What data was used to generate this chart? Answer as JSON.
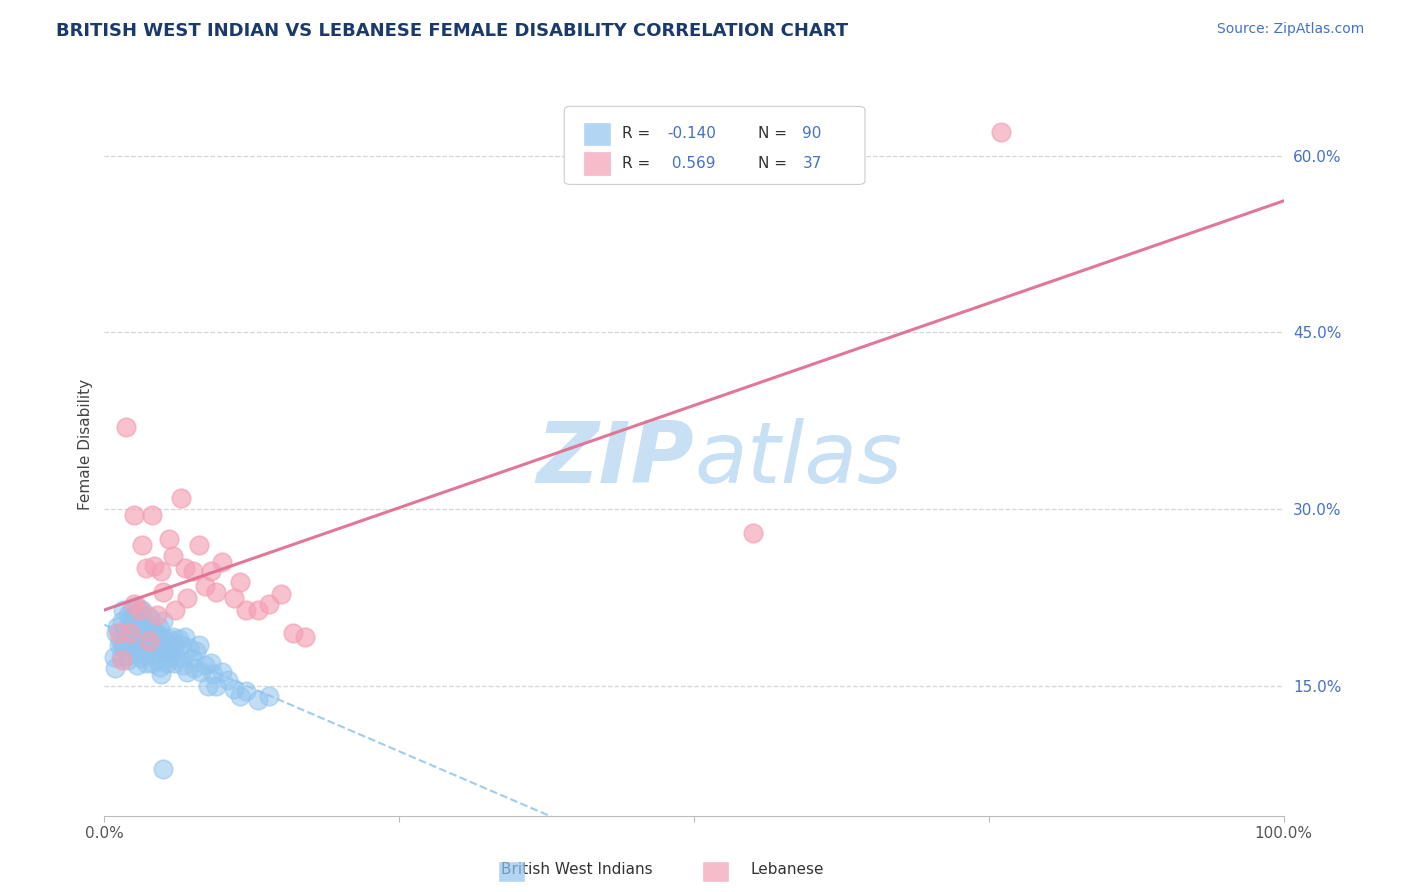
{
  "title": "BRITISH WEST INDIAN VS LEBANESE FEMALE DISABILITY CORRELATION CHART",
  "source": "Source: ZipAtlas.com",
  "ylabel": "Female Disability",
  "xlim": [
    0.0,
    1.0
  ],
  "ylim": [
    0.04,
    0.67
  ],
  "ytick_labels_right": [
    "15.0%",
    "30.0%",
    "45.0%",
    "60.0%"
  ],
  "ytick_positions_right": [
    0.15,
    0.3,
    0.45,
    0.6
  ],
  "r_bwi": -0.14,
  "n_bwi": 90,
  "r_leb": 0.569,
  "n_leb": 37,
  "color_bwi": "#90C4EE",
  "color_leb": "#F4A0B4",
  "color_bwi_line": "#90C4EE",
  "color_leb_line": "#E07090",
  "background_color": "#ffffff",
  "grid_color": "#CCCCCC",
  "watermark_color": "#C8E0F4",
  "title_color": "#1a3a6b",
  "source_color": "#4472C4",
  "legend_color": "#4472C4",
  "bwi_x": [
    0.008,
    0.009,
    0.01,
    0.011,
    0.012,
    0.013,
    0.014,
    0.015,
    0.015,
    0.016,
    0.017,
    0.018,
    0.019,
    0.02,
    0.02,
    0.021,
    0.022,
    0.022,
    0.023,
    0.024,
    0.025,
    0.025,
    0.026,
    0.027,
    0.028,
    0.028,
    0.029,
    0.03,
    0.03,
    0.031,
    0.031,
    0.032,
    0.033,
    0.033,
    0.034,
    0.034,
    0.035,
    0.036,
    0.037,
    0.038,
    0.038,
    0.039,
    0.04,
    0.04,
    0.041,
    0.042,
    0.043,
    0.044,
    0.045,
    0.045,
    0.046,
    0.047,
    0.048,
    0.049,
    0.05,
    0.05,
    0.052,
    0.053,
    0.054,
    0.055,
    0.056,
    0.057,
    0.058,
    0.059,
    0.06,
    0.062,
    0.063,
    0.065,
    0.067,
    0.068,
    0.07,
    0.072,
    0.074,
    0.076,
    0.078,
    0.08,
    0.082,
    0.085,
    0.088,
    0.09,
    0.092,
    0.095,
    0.1,
    0.105,
    0.11,
    0.115,
    0.12,
    0.13,
    0.14,
    0.05
  ],
  "bwi_y": [
    0.175,
    0.165,
    0.195,
    0.2,
    0.185,
    0.19,
    0.175,
    0.205,
    0.185,
    0.215,
    0.182,
    0.198,
    0.176,
    0.21,
    0.172,
    0.188,
    0.208,
    0.2,
    0.216,
    0.195,
    0.185,
    0.208,
    0.19,
    0.178,
    0.218,
    0.168,
    0.188,
    0.2,
    0.204,
    0.174,
    0.182,
    0.215,
    0.19,
    0.19,
    0.198,
    0.205,
    0.17,
    0.21,
    0.192,
    0.178,
    0.188,
    0.208,
    0.17,
    0.195,
    0.198,
    0.182,
    0.188,
    0.185,
    0.172,
    0.195,
    0.2,
    0.166,
    0.16,
    0.192,
    0.182,
    0.205,
    0.188,
    0.17,
    0.18,
    0.19,
    0.174,
    0.18,
    0.192,
    0.17,
    0.185,
    0.174,
    0.19,
    0.185,
    0.168,
    0.192,
    0.162,
    0.182,
    0.174,
    0.165,
    0.18,
    0.185,
    0.162,
    0.168,
    0.15,
    0.17,
    0.16,
    0.15,
    0.162,
    0.155,
    0.148,
    0.142,
    0.146,
    0.138,
    0.142,
    0.08
  ],
  "leb_x": [
    0.012,
    0.015,
    0.018,
    0.022,
    0.025,
    0.025,
    0.03,
    0.032,
    0.035,
    0.038,
    0.04,
    0.042,
    0.045,
    0.048,
    0.05,
    0.055,
    0.058,
    0.06,
    0.065,
    0.068,
    0.07,
    0.075,
    0.08,
    0.085,
    0.09,
    0.095,
    0.1,
    0.11,
    0.115,
    0.12,
    0.13,
    0.14,
    0.15,
    0.16,
    0.17,
    0.55,
    0.76
  ],
  "leb_y": [
    0.195,
    0.172,
    0.37,
    0.195,
    0.22,
    0.295,
    0.215,
    0.27,
    0.25,
    0.188,
    0.295,
    0.252,
    0.21,
    0.248,
    0.23,
    0.275,
    0.26,
    0.215,
    0.31,
    0.25,
    0.225,
    0.248,
    0.27,
    0.235,
    0.248,
    0.23,
    0.255,
    0.225,
    0.238,
    0.215,
    0.215,
    0.22,
    0.228,
    0.195,
    0.192,
    0.28,
    0.62
  ]
}
